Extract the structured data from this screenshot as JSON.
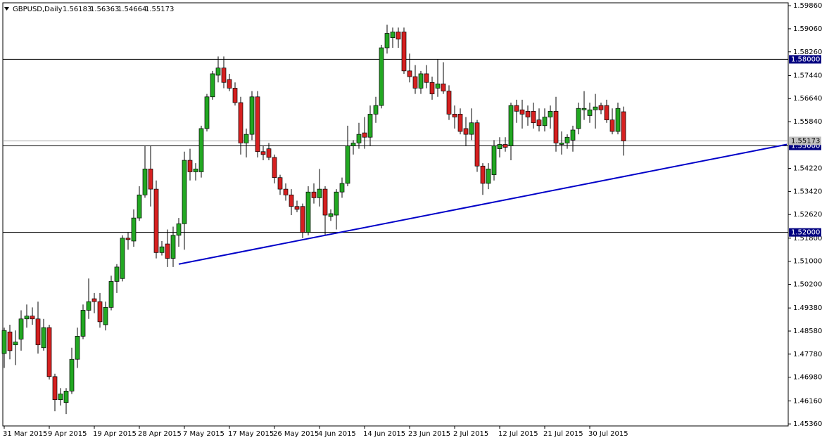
{
  "chart_data": {
    "type": "candlestick",
    "symbol": "GBPUSD,Daily",
    "categories": [
      "31 Mar 2015",
      null,
      null,
      null,
      null,
      null,
      null,
      null,
      "9 Apr 2015",
      null,
      null,
      null,
      null,
      null,
      null,
      null,
      "19 Apr 2015",
      null,
      null,
      null,
      null,
      null,
      null,
      null,
      "28 Apr 2015",
      null,
      null,
      null,
      null,
      null,
      null,
      null,
      "7 May 2015",
      null,
      null,
      null,
      null,
      null,
      null,
      null,
      "17 May 2015",
      null,
      null,
      null,
      null,
      null,
      null,
      null,
      "26 May 2015",
      null,
      null,
      null,
      null,
      null,
      null,
      null,
      "4 Jun 2015",
      null,
      null,
      null,
      null,
      null,
      null,
      null,
      "14 Jun 2015",
      null,
      null,
      null,
      null,
      null,
      null,
      null,
      "23 Jun 2015",
      null,
      null,
      null,
      null,
      null,
      null,
      null,
      "2 Jul 2015",
      null,
      null,
      null,
      null,
      null,
      null,
      null,
      "12 Jul 2015",
      null,
      null,
      null,
      null,
      null,
      null,
      null,
      "21 Jul 2015",
      null,
      null,
      null,
      null,
      null,
      null,
      null,
      "30 Jul 2015",
      null,
      null,
      null,
      null,
      null,
      null
    ],
    "open": [
      1.478,
      1.4855,
      1.481,
      1.483,
      1.49,
      1.491,
      1.49,
      1.48,
      1.487,
      1.47,
      1.462,
      1.461,
      1.465,
      1.476,
      1.484,
      1.493,
      1.497,
      1.496,
      1.488,
      1.494,
      1.503,
      1.504,
      1.518,
      1.517,
      1.525,
      1.533,
      1.542,
      1.535,
      1.513,
      1.516,
      1.511,
      1.519,
      1.523,
      1.545,
      1.541,
      1.541,
      1.556,
      1.567,
      1.5745,
      1.577,
      1.573,
      1.57,
      1.565,
      1.551,
      1.554,
      1.567,
      1.548,
      1.549,
      1.546,
      1.539,
      1.535,
      1.533,
      1.529,
      1.529,
      1.52,
      1.534,
      1.532,
      1.535,
      1.5255,
      1.526,
      1.534,
      1.537,
      1.55,
      1.551,
      1.5545,
      1.553,
      1.561,
      1.564,
      1.584,
      1.5875,
      1.5895,
      1.5895,
      1.576,
      1.574,
      1.57,
      1.575,
      1.572,
      1.57,
      1.5715,
      1.569,
      1.561,
      1.561,
      1.556,
      1.554,
      1.558,
      1.543,
      1.537,
      1.54,
      1.549,
      1.5505,
      1.55,
      1.564,
      1.5625,
      1.562,
      1.562,
      1.559,
      1.557,
      1.56,
      1.562,
      1.5505,
      1.551,
      1.552,
      1.556,
      1.5625,
      1.5605,
      1.5625,
      1.564,
      1.564,
      1.559,
      1.555,
      1.56183
    ],
    "high": [
      1.487,
      1.488,
      1.486,
      1.493,
      1.495,
      1.494,
      1.496,
      1.49,
      1.488,
      1.471,
      1.466,
      1.466,
      1.48,
      1.487,
      1.495,
      1.504,
      1.499,
      1.499,
      1.496,
      1.505,
      1.509,
      1.519,
      1.52,
      1.528,
      1.536,
      1.55,
      1.55,
      1.538,
      1.517,
      1.521,
      1.522,
      1.525,
      1.548,
      1.549,
      1.544,
      1.557,
      1.568,
      1.576,
      1.581,
      1.581,
      1.575,
      1.572,
      1.567,
      1.556,
      1.569,
      1.569,
      1.55,
      1.551,
      1.547,
      1.54,
      1.537,
      1.535,
      1.531,
      1.53,
      1.536,
      1.537,
      1.542,
      1.536,
      1.528,
      1.535,
      1.539,
      1.557,
      1.552,
      1.558,
      1.56,
      1.564,
      1.567,
      1.585,
      1.592,
      1.591,
      1.591,
      1.591,
      1.582,
      1.578,
      1.576,
      1.578,
      1.574,
      1.58,
      1.579,
      1.571,
      1.564,
      1.563,
      1.56,
      1.563,
      1.559,
      1.544,
      1.544,
      1.552,
      1.553,
      1.553,
      1.565,
      1.566,
      1.566,
      1.564,
      1.565,
      1.563,
      1.563,
      1.564,
      1.567,
      1.555,
      1.554,
      1.557,
      1.565,
      1.569,
      1.565,
      1.568,
      1.565,
      1.566,
      1.563,
      1.565,
      1.56363
    ],
    "low": [
      1.473,
      1.476,
      1.474,
      1.479,
      1.487,
      1.488,
      1.478,
      1.479,
      1.469,
      1.458,
      1.46,
      1.457,
      1.464,
      1.473,
      1.483,
      1.49,
      1.492,
      1.487,
      1.486,
      1.493,
      1.499,
      1.503,
      1.514,
      1.515,
      1.524,
      1.532,
      1.529,
      1.511,
      1.512,
      1.508,
      1.508,
      1.515,
      1.514,
      1.538,
      1.538,
      1.539,
      1.555,
      1.566,
      1.572,
      1.57,
      1.569,
      1.564,
      1.547,
      1.546,
      1.552,
      1.546,
      1.545,
      1.545,
      1.537,
      1.533,
      1.531,
      1.526,
      1.527,
      1.518,
      1.519,
      1.53,
      1.529,
      1.519,
      1.524,
      1.521,
      1.532,
      1.536,
      1.547,
      1.549,
      1.549,
      1.55,
      1.558,
      1.563,
      1.582,
      1.584,
      1.584,
      1.575,
      1.572,
      1.568,
      1.568,
      1.57,
      1.566,
      1.567,
      1.568,
      1.559,
      1.556,
      1.554,
      1.55,
      1.552,
      1.541,
      1.533,
      1.535,
      1.538,
      1.546,
      1.548,
      1.545,
      1.558,
      1.556,
      1.557,
      1.556,
      1.555,
      1.555,
      1.556,
      1.548,
      1.547,
      1.549,
      1.548,
      1.554,
      1.559,
      1.558,
      1.556,
      1.561,
      1.558,
      1.554,
      1.554,
      1.54664
    ],
    "close": [
      1.486,
      1.479,
      1.482,
      1.49,
      1.491,
      1.49,
      1.481,
      1.487,
      1.47,
      1.462,
      1.464,
      1.465,
      1.476,
      1.484,
      1.493,
      1.496,
      1.496,
      1.489,
      1.494,
      1.503,
      1.508,
      1.518,
      1.5175,
      1.525,
      1.533,
      1.542,
      1.535,
      1.513,
      1.515,
      1.511,
      1.519,
      1.523,
      1.545,
      1.541,
      1.542,
      1.556,
      1.567,
      1.575,
      1.577,
      1.572,
      1.57,
      1.565,
      1.551,
      1.554,
      1.567,
      1.548,
      1.547,
      1.546,
      1.539,
      1.535,
      1.533,
      1.529,
      1.528,
      1.52,
      1.534,
      1.532,
      1.535,
      1.526,
      1.5265,
      1.534,
      1.537,
      1.55,
      1.551,
      1.554,
      1.553,
      1.561,
      1.564,
      1.584,
      1.589,
      1.5895,
      1.587,
      1.576,
      1.574,
      1.57,
      1.575,
      1.572,
      1.568,
      1.5715,
      1.569,
      1.561,
      1.56,
      1.555,
      1.554,
      1.558,
      1.543,
      1.537,
      1.542,
      1.55,
      1.5505,
      1.5495,
      1.564,
      1.562,
      1.561,
      1.56,
      1.558,
      1.557,
      1.56,
      1.562,
      1.551,
      1.551,
      1.553,
      1.5555,
      1.563,
      1.563,
      1.5625,
      1.5635,
      1.5625,
      1.559,
      1.555,
      1.563,
      1.55173
    ],
    "up_color": "#22a822",
    "down_color": "#d62020",
    "ylim": [
      1.4529,
      1.5996
    ],
    "yticks": [
      {
        "value": 1.5986,
        "label": "1.59860"
      },
      {
        "value": 1.5906,
        "label": "1.59060"
      },
      {
        "value": 1.5826,
        "label": "1.58260"
      },
      {
        "value": 1.5744,
        "label": "1.57440"
      },
      {
        "value": 1.5664,
        "label": "1.56640"
      },
      {
        "value": 1.5584,
        "label": "1.55840"
      },
      {
        "value": 1.5422,
        "label": "1.54220"
      },
      {
        "value": 1.5342,
        "label": "1.53420"
      },
      {
        "value": 1.5262,
        "label": "1.52620"
      },
      {
        "value": 1.518,
        "label": "1.51800"
      },
      {
        "value": 1.51,
        "label": "1.51000"
      },
      {
        "value": 1.502,
        "label": "1.50200"
      },
      {
        "value": 1.4938,
        "label": "1.49380"
      },
      {
        "value": 1.4858,
        "label": "1.48580"
      },
      {
        "value": 1.4778,
        "label": "1.47780"
      },
      {
        "value": 1.4698,
        "label": "1.46980"
      },
      {
        "value": 1.4616,
        "label": "1.46160"
      },
      {
        "value": 1.4536,
        "label": "1.45360"
      }
    ],
    "hlines": [
      {
        "value": 1.58,
        "label": "1.58000"
      },
      {
        "value": 1.55,
        "label": "1.55000"
      },
      {
        "value": 1.52,
        "label": "1.52000"
      }
    ],
    "trendline": {
      "x": [
        31,
        139
      ],
      "y": [
        1.509,
        1.5505
      ],
      "color": "#0000c8"
    }
  }
}
